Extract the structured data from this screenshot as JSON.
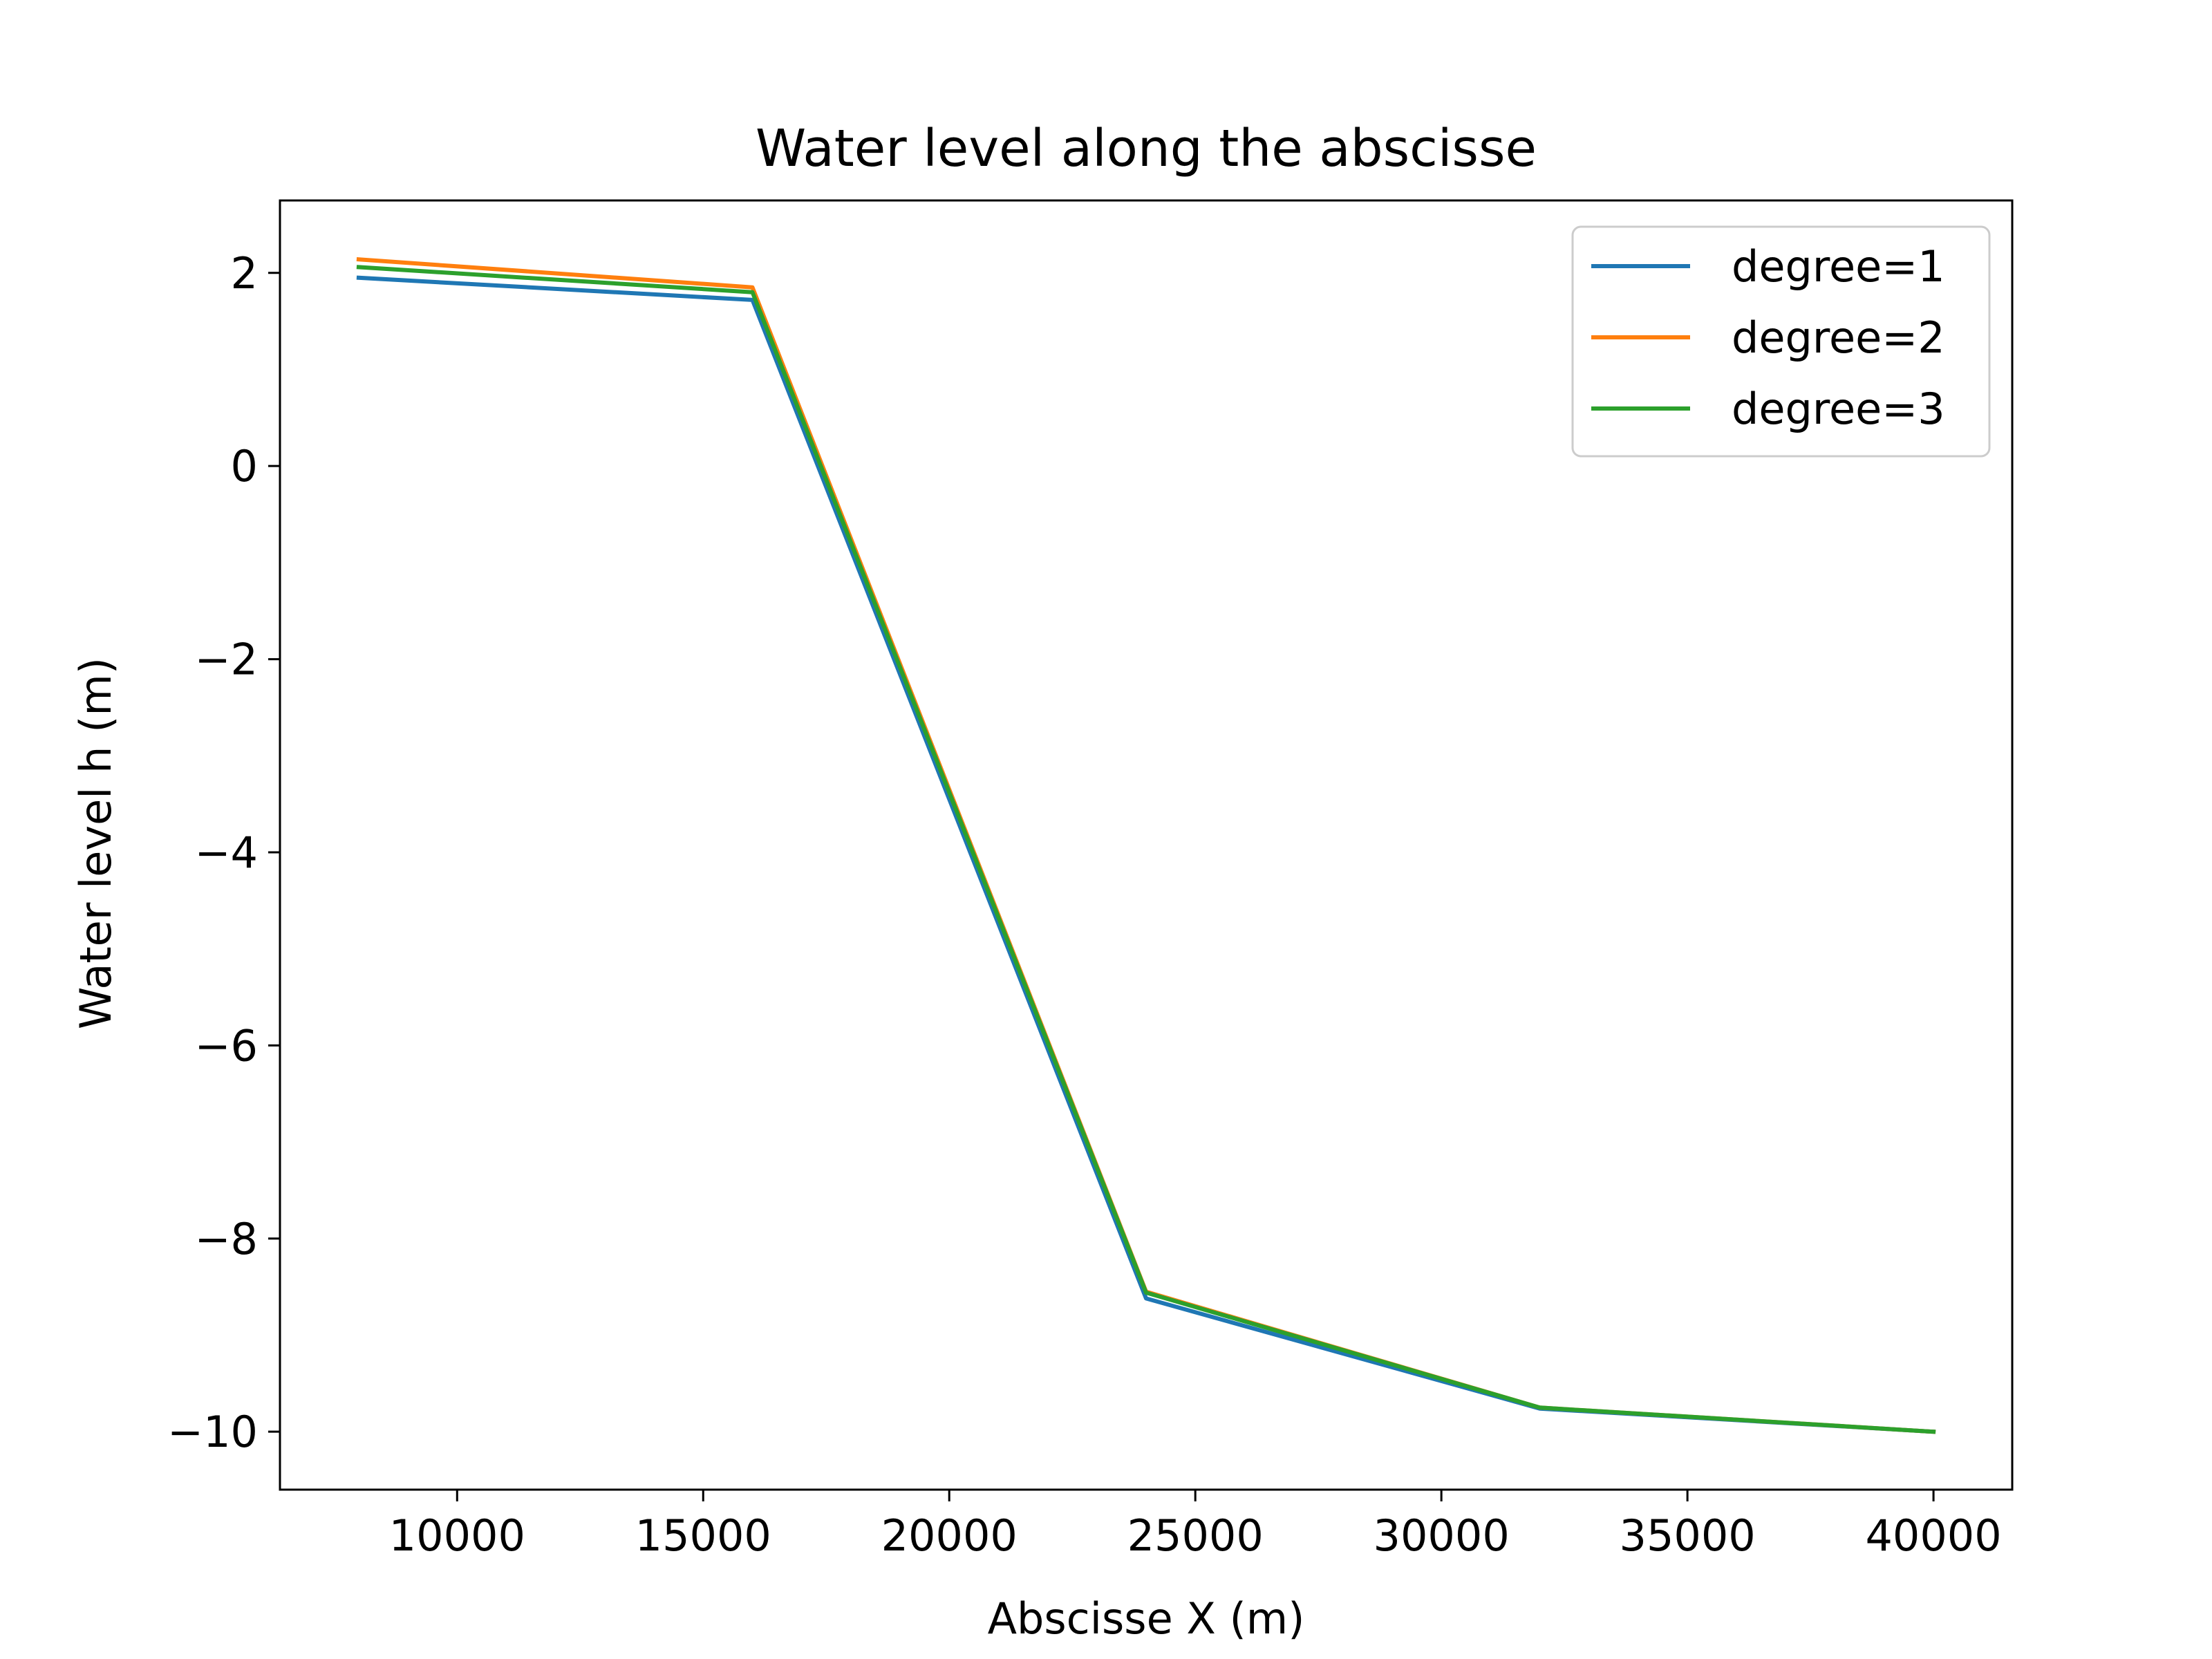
{
  "chart_data": {
    "type": "line",
    "title": "Water level along the abscisse",
    "xlabel": "Abscisse X (m)",
    "ylabel": "Water level h (m)",
    "xlim": [
      6400,
      41600
    ],
    "ylim": [
      -10.6,
      2.75
    ],
    "x_ticks": [
      10000,
      15000,
      20000,
      25000,
      30000,
      35000,
      40000
    ],
    "x_tick_labels": [
      "10000",
      "15000",
      "20000",
      "25000",
      "30000",
      "35000",
      "40000"
    ],
    "y_ticks": [
      2,
      0,
      -2,
      -4,
      -6,
      -8,
      -10
    ],
    "y_tick_labels": [
      "2",
      "0",
      "−2",
      "−4",
      "−6",
      "−8",
      "−10"
    ],
    "grid": false,
    "legend_position": "top-right",
    "x": [
      8000,
      16000,
      24000,
      32000,
      40000
    ],
    "series": [
      {
        "name": "degree=1",
        "color": "#1f77b4",
        "values": [
          1.95,
          1.72,
          -8.62,
          -9.76,
          -10.0
        ]
      },
      {
        "name": "degree=2",
        "color": "#ff7f0e",
        "values": [
          2.14,
          1.85,
          -8.55,
          -9.75,
          -10.0
        ]
      },
      {
        "name": "degree=3",
        "color": "#2ca02c",
        "values": [
          2.06,
          1.8,
          -8.56,
          -9.75,
          -10.0
        ]
      }
    ]
  }
}
